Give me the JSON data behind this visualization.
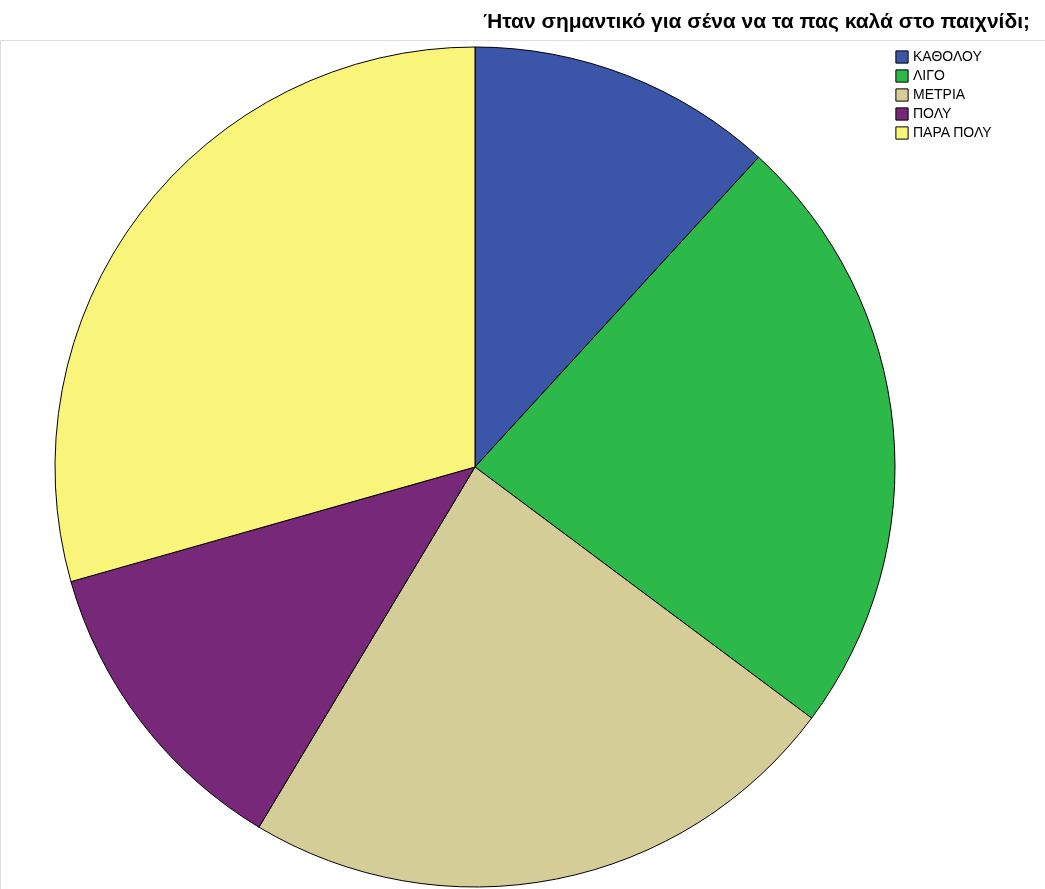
{
  "chart_data": {
    "type": "pie",
    "title": "Ήταν σημαντικό για σένα να τα πας καλά στο παιχνίδι;",
    "categories": [
      "ΚΑΘΟΛΟΥ",
      "ΛΙΓΟ",
      "ΜΕΤΡΙΑ",
      "ΠΟΛΥ",
      "ΠΑΡΑ ΠΟΛΥ"
    ],
    "values": [
      11.8,
      23.4,
      23.4,
      12.0,
      29.4
    ],
    "colors": [
      "#3b56a8",
      "#2db84a",
      "#d4cd98",
      "#782878",
      "#f8f57a"
    ],
    "legend": "top right"
  }
}
